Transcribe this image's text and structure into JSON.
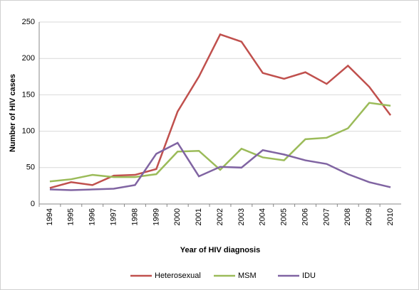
{
  "chart_data": {
    "type": "line",
    "categories": [
      "1994",
      "1995",
      "1996",
      "1997",
      "1998",
      "1999",
      "2000",
      "2001",
      "2002",
      "2003",
      "2004",
      "2005",
      "2006",
      "2007",
      "2008",
      "2009",
      "2010"
    ],
    "series": [
      {
        "name": "Heterosexual",
        "color": "#c0504d",
        "values": [
          22,
          30,
          26,
          39,
          40,
          48,
          127,
          175,
          233,
          223,
          180,
          172,
          181,
          165,
          190,
          161,
          122
        ]
      },
      {
        "name": "MSM",
        "color": "#9bbb59",
        "values": [
          31,
          34,
          40,
          37,
          37,
          41,
          72,
          73,
          47,
          76,
          64,
          60,
          89,
          91,
          104,
          139,
          135
        ]
      },
      {
        "name": "IDU",
        "color": "#8064a2",
        "values": [
          20,
          19,
          20,
          21,
          26,
          69,
          84,
          38,
          51,
          50,
          74,
          68,
          60,
          55,
          41,
          30,
          23
        ]
      }
    ],
    "ylim": [
      0,
      250
    ],
    "yticks": [
      0,
      50,
      100,
      150,
      200,
      250
    ],
    "grid": true,
    "xlabel": "Year of HIV diagnosis",
    "ylabel": "Number of HIV cases",
    "legend": "bottom"
  }
}
